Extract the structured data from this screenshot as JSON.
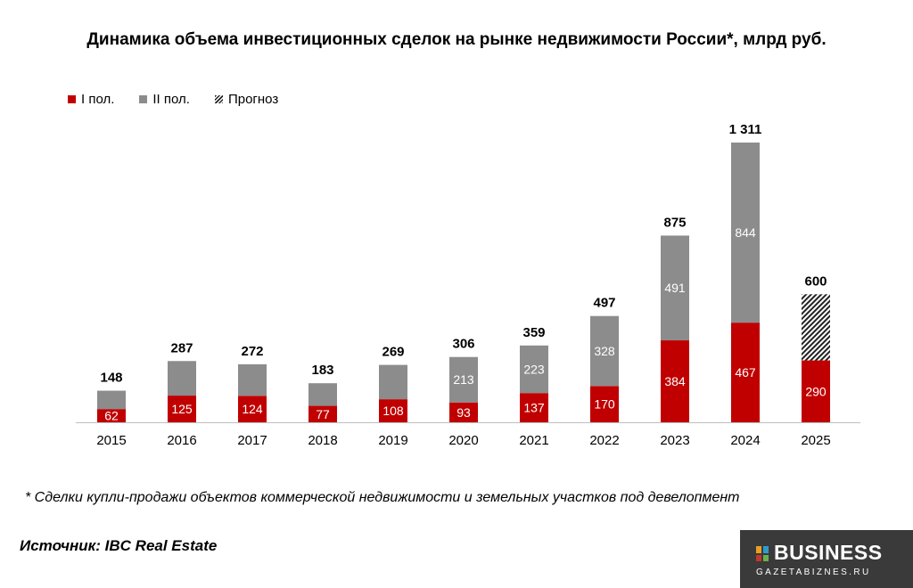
{
  "header": {
    "title": "Динамика объема инвестиционных сделок на рынке недвижимости России*, млрд руб."
  },
  "legend": {
    "h1": "I пол.",
    "h2": "II пол.",
    "forecast": "Прогноз"
  },
  "chart_data": {
    "type": "bar",
    "stacked": true,
    "title": "Динамика объема инвестиционных сделок на рынке недвижимости России*, млрд руб.",
    "categories": [
      "2015",
      "2016",
      "2017",
      "2018",
      "2019",
      "2020",
      "2021",
      "2022",
      "2023",
      "2024",
      "2025"
    ],
    "series": [
      {
        "name": "I пол.",
        "values": [
          62,
          125,
          124,
          77,
          108,
          93,
          137,
          170,
          384,
          467,
          290
        ],
        "color": "#c00000"
      },
      {
        "name": "II пол.",
        "values": [
          86,
          162,
          148,
          106,
          161,
          213,
          223,
          328,
          491,
          844,
          null
        ],
        "color": "#8c8c8c"
      },
      {
        "name": "Прогноз",
        "values": [
          null,
          null,
          null,
          null,
          null,
          null,
          null,
          null,
          null,
          null,
          310
        ],
        "pattern": "hatched"
      }
    ],
    "totals": [
      "148",
      "287",
      "272",
      "183",
      "269",
      "306",
      "359",
      "497",
      "875",
      "1 311",
      "600"
    ],
    "ylim": [
      0,
      1311
    ],
    "legend_position": "top-left",
    "grid": false
  },
  "footnote": "* Сделки купли-продажи объектов коммерческой недвижимости и земельных участков под девелопмент",
  "source": "Источник: IBC Real Estate",
  "logo": {
    "word": "BUSINESS",
    "sub": "GAZETABIZNES.RU",
    "colors": [
      "#e8a020",
      "#2e9ad0",
      "#c0392b",
      "#6ab04c"
    ]
  }
}
